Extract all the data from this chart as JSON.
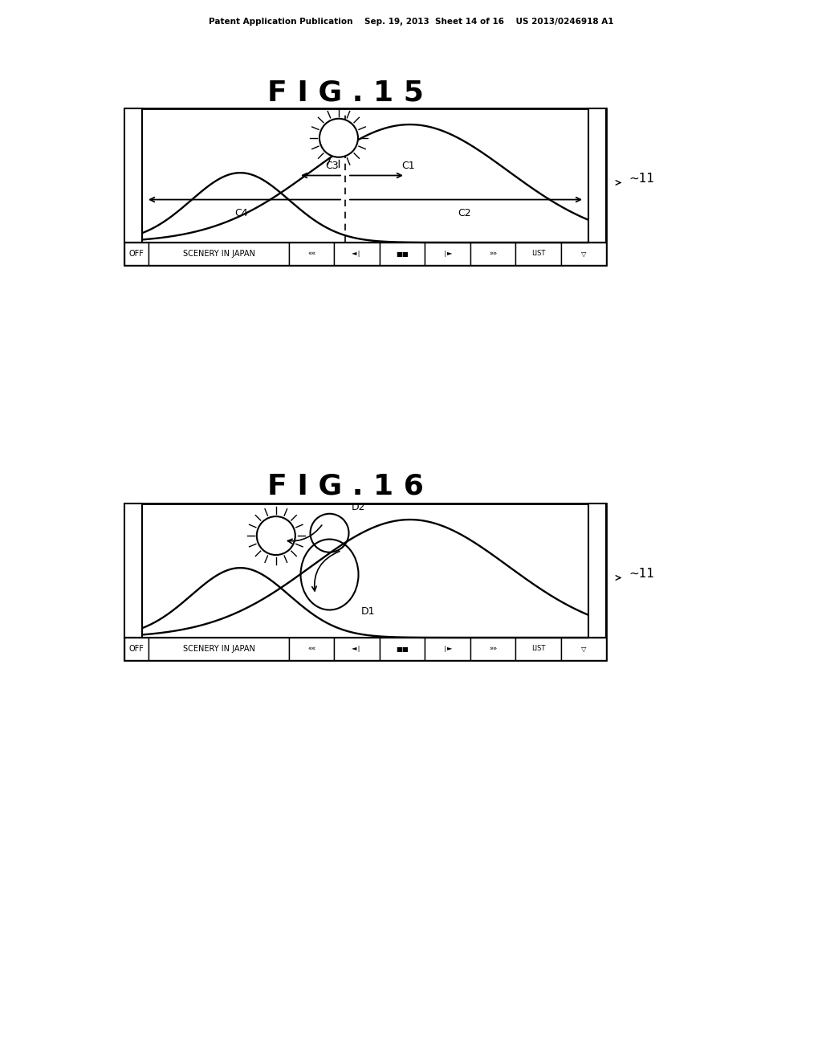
{
  "bg_color": "#ffffff",
  "header_text": "Patent Application Publication    Sep. 19, 2013  Sheet 14 of 16    US 2013/0246918 A1",
  "fig15_title": "F I G . 1 5",
  "fig16_title": "F I G . 1 6",
  "line_color": "#000000",
  "line_width": 1.5
}
